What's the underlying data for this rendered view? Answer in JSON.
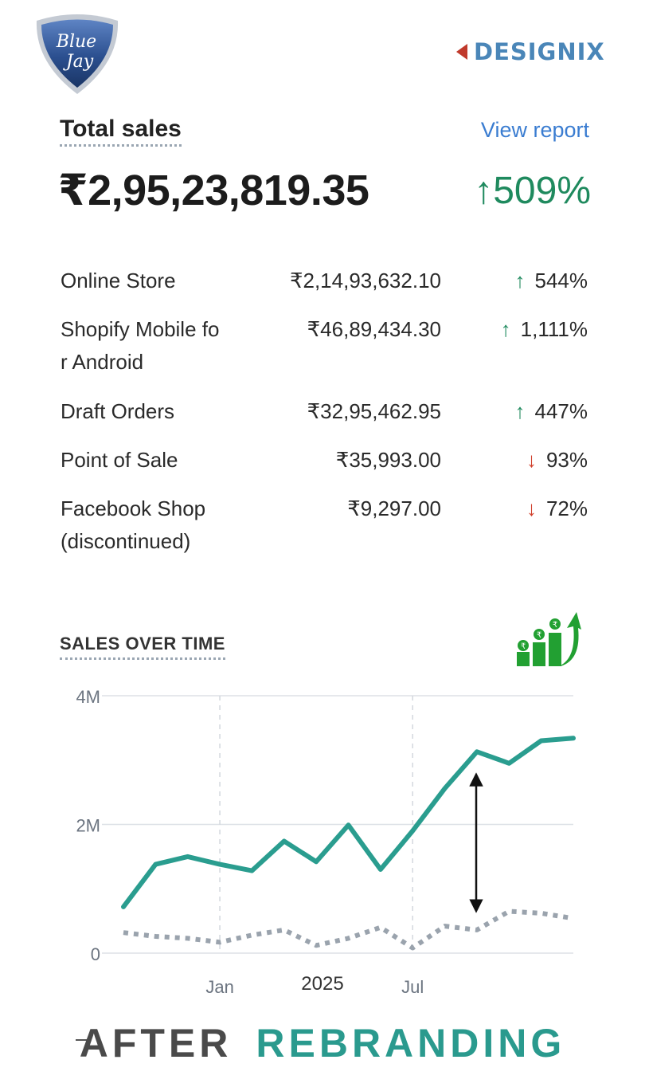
{
  "brand": {
    "left_logo_text_line1": "Blue",
    "left_logo_text_line2": "Jay",
    "right_logo_text": "DESIGNIX"
  },
  "summary": {
    "title": "Total sales",
    "link": "View report",
    "value": "₹2,95,23,819.35",
    "change": "↑509%",
    "change_direction": "up"
  },
  "channels": [
    {
      "name": "Online Store",
      "amount": "₹2,14,93,632.10",
      "change": "544%",
      "direction": "up"
    },
    {
      "name": "Shopify Mobile for Android",
      "amount": "₹46,89,434.30",
      "change": "1,111%",
      "direction": "up"
    },
    {
      "name": "Draft Orders",
      "amount": "₹32,95,462.95",
      "change": "447%",
      "direction": "up"
    },
    {
      "name": "Point of Sale",
      "amount": "₹35,993.00",
      "change": "93%",
      "direction": "down"
    },
    {
      "name": "Facebook Shop (discontinued)",
      "amount": "₹9,297.00",
      "change": "72%",
      "direction": "down"
    }
  ],
  "sales_over_time_title": "SALES OVER TIME",
  "growth_icon": "rupee-growth-chart-icon",
  "colors": {
    "current_series": "#2a9d8f",
    "previous_series": "#9aa3ad",
    "up": "#1f8a5e",
    "down": "#d0402c",
    "link": "#3b7dd1"
  },
  "chart_data": {
    "type": "line",
    "y_tick_labels": [
      "4M",
      "2M",
      "0"
    ],
    "x_tick_labels": [
      "Jan",
      "Jul"
    ],
    "x_center_label": "2025",
    "ylim": [
      0,
      4000000
    ],
    "grid": true,
    "series": [
      {
        "style": "solid",
        "values": [
          720000,
          1380000,
          1500000,
          1380000,
          1280000,
          1740000,
          1420000,
          1990000,
          1300000,
          1900000,
          2560000,
          3130000,
          2950000,
          3300000,
          3340000
        ]
      },
      {
        "style": "dotted",
        "values": [
          320000,
          260000,
          230000,
          170000,
          280000,
          360000,
          120000,
          230000,
          400000,
          80000,
          420000,
          360000,
          650000,
          620000,
          540000
        ]
      }
    ],
    "annotation": "double-headed arrow between series"
  },
  "footer": {
    "word1": "AFTER",
    "word2": "REBRANDING"
  }
}
